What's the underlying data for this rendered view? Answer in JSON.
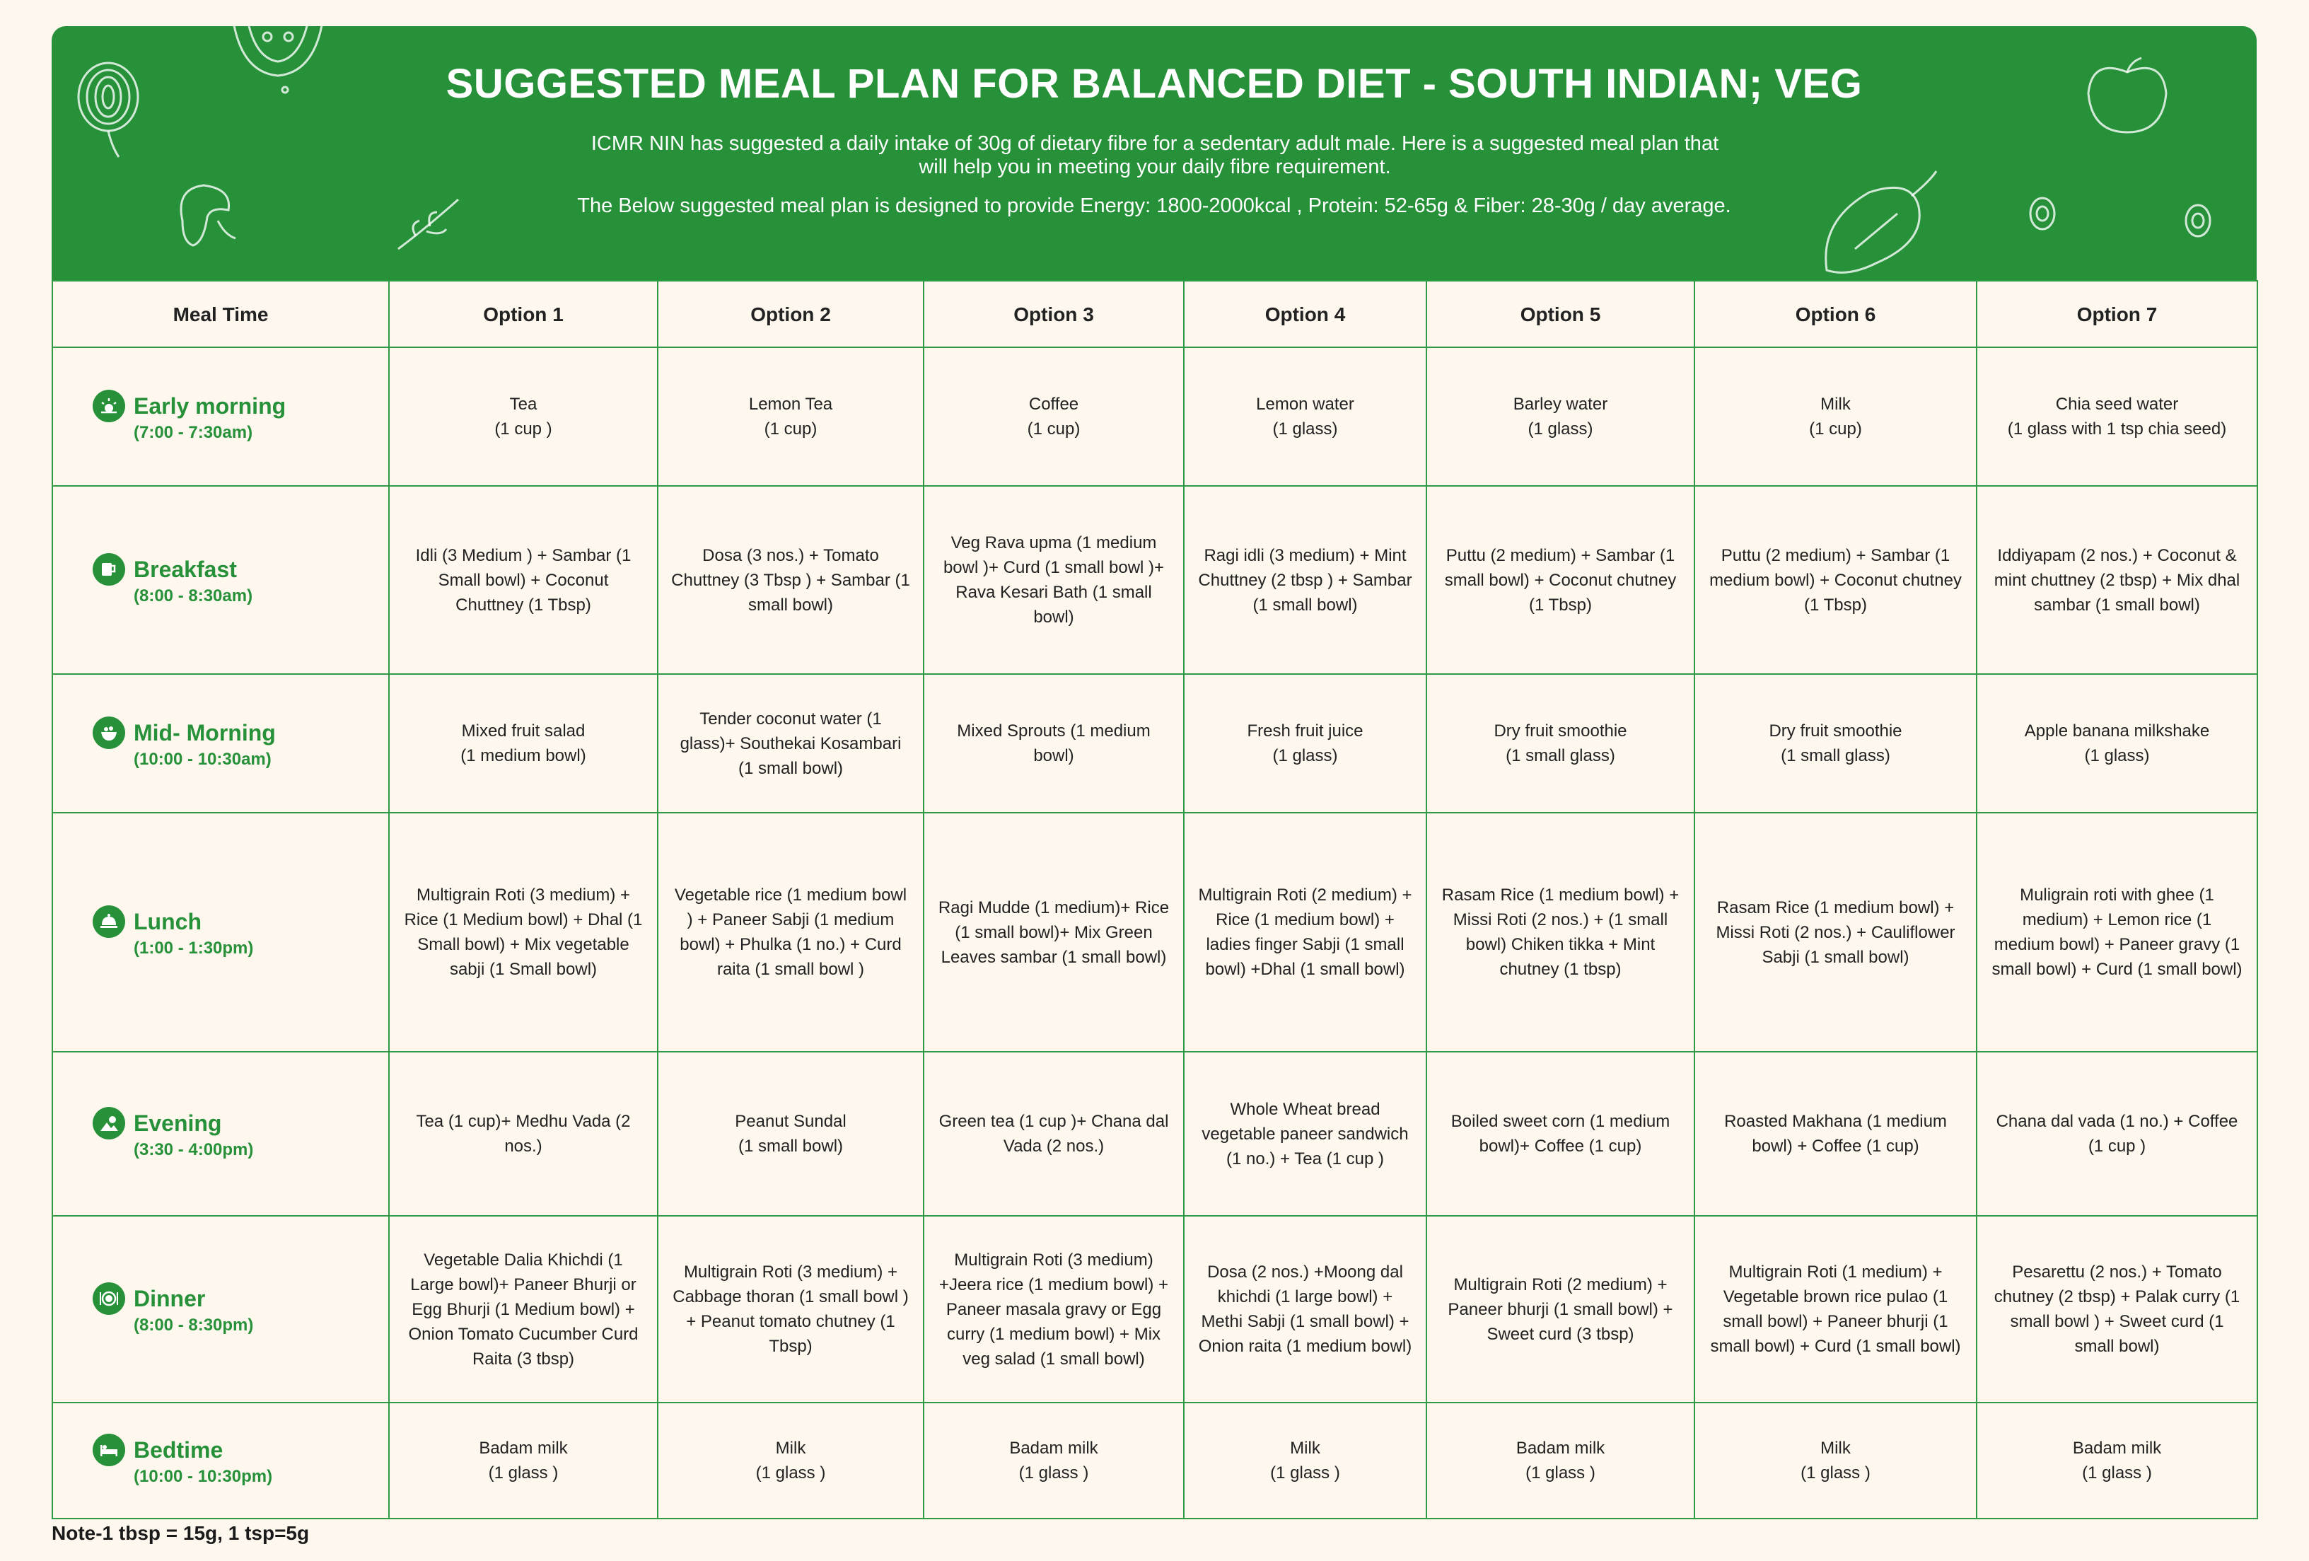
{
  "header": {
    "title": "SUGGESTED MEAL PLAN FOR BALANCED DIET - SOUTH INDIAN; VEG",
    "subtitle": "ICMR NIN has suggested a daily intake of 30g of dietary fibre for a sedentary adult male. Here is a suggested meal plan that will help you in meeting your daily fibre requirement.",
    "energy_line": "The Below suggested meal plan is designed to provide Energy: 1800-2000kcal , Protein: 52-65g & Fiber: 28-30g / day average."
  },
  "colors": {
    "brand_green": "#27913a",
    "background": "#fdf7ee"
  },
  "table": {
    "columns": [
      "Meal Time",
      "Option 1",
      "Option 2",
      "Option 3",
      "Option 4",
      "Option 5",
      "Option 6",
      "Option 7"
    ],
    "rows": [
      {
        "meal": "Early morning",
        "time": "(7:00 - 7:30am)",
        "icon": "sunrise-icon",
        "cells": [
          [
            "Tea",
            "(1 cup )"
          ],
          [
            "Lemon Tea",
            "(1 cup)"
          ],
          [
            "Coffee",
            "(1 cup)"
          ],
          [
            "Lemon water",
            "(1 glass)"
          ],
          [
            "Barley water",
            "(1 glass)"
          ],
          [
            "Milk",
            "(1 cup)"
          ],
          [
            "Chia seed water",
            "(1 glass with 1 tsp chia seed)"
          ]
        ]
      },
      {
        "meal": "Breakfast",
        "time": "(8:00 - 8:30am)",
        "icon": "breakfast-icon",
        "cells": [
          [
            "Idli (3 Medium ) +  Sambar (1 Small bowl) +  Coconut Chuttney (1 Tbsp)"
          ],
          [
            "Dosa (3 nos.) + Tomato Chuttney (3 Tbsp ) +  Sambar (1 small bowl)"
          ],
          [
            "Veg Rava upma (1 medium bowl )+  Curd (1 small bowl )+ Rava Kesari Bath (1 small bowl)"
          ],
          [
            "Ragi idli (3 medium) +  Mint Chuttney (2 tbsp ) + Sambar (1 small bowl)"
          ],
          [
            "Puttu  (2 medium) + Sambar  (1 small bowl) +  Coconut chutney (1 Tbsp)"
          ],
          [
            "Puttu (2 medium) +   Sambar (1 medium bowl) + Coconut chutney  (1 Tbsp)"
          ],
          [
            "Iddiyapam (2 nos.) + Coconut & mint chuttney (2 tbsp) + Mix dhal sambar  (1 small bowl)"
          ]
        ]
      },
      {
        "meal": "Mid- Morning",
        "time": "(10:00 - 10:30am)",
        "icon": "snack-bowl-icon",
        "cells": [
          [
            "Mixed fruit salad",
            "(1 medium bowl)"
          ],
          [
            "Tender coconut water (1 glass)+  Southekai Kosambari (1 small bowl)"
          ],
          [
            "Mixed Sprouts (1 medium bowl)"
          ],
          [
            "Fresh fruit juice",
            "(1 glass)"
          ],
          [
            "Dry fruit smoothie",
            "(1 small glass)"
          ],
          [
            "Dry fruit smoothie",
            "(1 small glass)"
          ],
          [
            "Apple banana milkshake",
            "(1 glass)"
          ]
        ]
      },
      {
        "meal": "Lunch",
        "time": "(1:00 - 1:30pm)",
        "icon": "cloche-icon",
        "cells": [
          [
            "Multigrain Roti  (3 medium) + Rice (1 Medium bowl)  + Dhal (1 Small bowl)  +   Mix vegetable sabji (1 Small bowl)"
          ],
          [
            "Vegetable rice (1 medium bowl ) +  Paneer Sabji (1 medium bowl)  + Phulka (1 no.) + Curd raita (1 small bowl )"
          ],
          [
            "Ragi Mudde (1 medium)+ Rice (1 small bowl)+ Mix Green Leaves sambar (1 small bowl)"
          ],
          [
            "Multigrain Roti (2 medium) +  Rice (1 medium bowl)  + ladies finger  Sabji (1 small bowl) +Dhal  (1 small bowl)"
          ],
          [
            "Rasam Rice (1 medium bowl) + Missi Roti (2 nos.) + (1 small bowl) Chiken tikka +  Mint chutney (1 tbsp)"
          ],
          [
            "Rasam Rice (1 medium bowl) + Missi Roti (2 nos.) +  Cauliflower Sabji  (1 small bowl)"
          ],
          [
            "Muligrain roti with ghee (1 medium) + Lemon rice  (1 medium bowl) +  Paneer gravy (1 small  bowl)  + Curd (1 small bowl)"
          ]
        ]
      },
      {
        "meal": "Evening",
        "time": "(3:30 - 4:00pm)",
        "icon": "evening-icon",
        "cells": [
          [
            "Tea (1 cup)+ Medhu Vada (2 nos.)"
          ],
          [
            "Peanut Sundal",
            "(1 small bowl)"
          ],
          [
            "Green tea  (1 cup )+  Chana dal Vada (2 nos.)"
          ],
          [
            "Whole Wheat  bread vegetable paneer sandwich (1 no.) + Tea (1 cup )"
          ],
          [
            "Boiled sweet corn (1 medium bowl)+  Coffee (1 cup)"
          ],
          [
            "Roasted Makhana (1 medium bowl) +  Coffee (1 cup)"
          ],
          [
            "Chana dal vada (1 no.) + Coffee (1 cup )"
          ]
        ]
      },
      {
        "meal": "Dinner",
        "time": "(8:00 - 8:30pm)",
        "icon": "plate-icon",
        "cells": [
          [
            "Vegetable Dalia Khichdi (1 Large bowl)+  Paneer Bhurji or Egg Bhurji (1 Medium bowl)  + Onion Tomato Cucumber Curd Raita (3 tbsp)"
          ],
          [
            "Multigrain Roti  (3 medium) + Cabbage thoran (1 small bowl ) +  Peanut tomato chutney (1 Tbsp)"
          ],
          [
            "Multigrain Roti (3 medium) +Jeera rice  (1 medium  bowl) +  Paneer masala gravy or Egg curry (1 medium bowl) + Mix veg salad  (1  small bowl)"
          ],
          [
            "Dosa (2 nos.) +Moong dal khichdi  (1 large bowl)  + Methi Sabji (1 small bowl)  + Onion raita (1 medium bowl)"
          ],
          [
            "Multigrain Roti (2 medium) + Paneer bhurji (1 small bowl) + Sweet curd (3 tbsp)"
          ],
          [
            "Multigrain Roti (1 medium) + Vegetable brown  rice pulao  (1 small bowl) + Paneer bhurji (1 small bowl) +  Curd (1 small bowl)"
          ],
          [
            "Pesarettu (2 nos.) +  Tomato chutney (2 tbsp) + Palak curry (1 small bowl ) + Sweet curd (1 small bowl)"
          ]
        ]
      },
      {
        "meal": "Bedtime",
        "time": "(10:00 - 10:30pm)",
        "icon": "bed-icon",
        "cells": [
          [
            "Badam milk",
            "(1 glass )"
          ],
          [
            "Milk",
            "(1 glass )"
          ],
          [
            "Badam milk",
            "(1 glass )"
          ],
          [
            "Milk",
            "(1 glass )"
          ],
          [
            "Badam milk",
            "(1 glass )"
          ],
          [
            "Milk",
            "(1 glass )"
          ],
          [
            "Badam milk",
            "(1 glass )"
          ]
        ]
      }
    ]
  },
  "footer": {
    "note": "Note-1 tbsp = 15g, 1 tsp=5g"
  }
}
